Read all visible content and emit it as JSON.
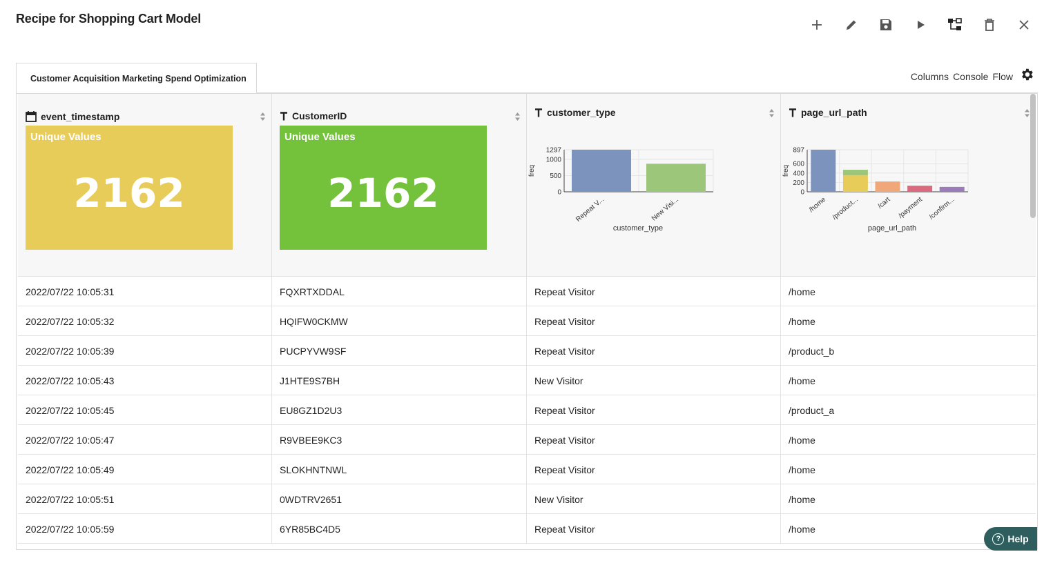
{
  "title": "Recipe for Shopping Cart Model",
  "toolbar": {
    "icons": [
      "plus-icon",
      "pencil-icon",
      "save-icon",
      "play-icon",
      "flow-tree-icon",
      "trash-icon",
      "close-icon"
    ]
  },
  "tab": {
    "label": "Customer Acquisition Marketing Spend Optimization"
  },
  "panel_links": {
    "columns": "Columns",
    "console": "Console",
    "flow": "Flow"
  },
  "columns": [
    {
      "name": "event_timestamp",
      "type_icon": "calendar-icon",
      "summary": "Unique Values",
      "count": "2162",
      "color": "#e8cc5a"
    },
    {
      "name": "CustomerID",
      "type_icon": "text-type-icon",
      "summary": "Unique Values",
      "count": "2162",
      "color": "#74c13c"
    },
    {
      "name": "customer_type",
      "type_icon": "text-type-icon"
    },
    {
      "name": "page_url_path",
      "type_icon": "text-type-icon"
    }
  ],
  "chart_data": [
    {
      "type": "bar",
      "categories": [
        "Repeat V...",
        "New Visi..."
      ],
      "values": [
        1297,
        865
      ],
      "colors": [
        "#7b93bd",
        "#9cc67a"
      ],
      "xlabel": "customer_type",
      "ylabel": "freq",
      "yticks": [
        "1297",
        "1000",
        "500",
        "0"
      ],
      "ylim": [
        0,
        1297
      ],
      "grid": true
    },
    {
      "type": "bar",
      "stacked": true,
      "categories": [
        "/home",
        "/product...",
        "/cart",
        "/payment",
        "/confirm..."
      ],
      "series": [
        {
          "values": [
            897,
            350,
            220,
            130,
            105
          ],
          "colors": [
            "#7b93bd",
            "#e8cc5a",
            "#f0a77a",
            "#d96b7f",
            "#9b7bb8"
          ]
        },
        {
          "values": [
            0,
            120,
            0,
            0,
            0
          ],
          "colors": [
            "#9cc67a",
            "#9cc67a",
            "#9cc67a",
            "#9cc67a",
            "#9cc67a"
          ]
        }
      ],
      "xlabel": "page_url_path",
      "ylabel": "freq",
      "yticks": [
        "897",
        "600",
        "400",
        "200",
        "0"
      ],
      "ylim": [
        0,
        897
      ],
      "grid": true
    }
  ],
  "rows": [
    [
      "2022/07/22 10:05:31",
      "FQXRTXDDAL",
      "Repeat Visitor",
      "/home"
    ],
    [
      "2022/07/22 10:05:32",
      "HQIFW0CKMW",
      "Repeat Visitor",
      "/home"
    ],
    [
      "2022/07/22 10:05:39",
      "PUCPYVW9SF",
      "Repeat Visitor",
      "/product_b"
    ],
    [
      "2022/07/22 10:05:43",
      "J1HTE9S7BH",
      "New Visitor",
      "/home"
    ],
    [
      "2022/07/22 10:05:45",
      "EU8GZ1D2U3",
      "Repeat Visitor",
      "/product_a"
    ],
    [
      "2022/07/22 10:05:47",
      "R9VBEE9KC3",
      "Repeat Visitor",
      "/home"
    ],
    [
      "2022/07/22 10:05:49",
      "SLOKHNTNWL",
      "Repeat Visitor",
      "/home"
    ],
    [
      "2022/07/22 10:05:51",
      "0WDTRV2651",
      "New Visitor",
      "/home"
    ],
    [
      "2022/07/22 10:05:59",
      "6YR85BC4D5",
      "Repeat Visitor",
      "/home"
    ]
  ],
  "help": {
    "label": "Help",
    "glyph": "?"
  }
}
